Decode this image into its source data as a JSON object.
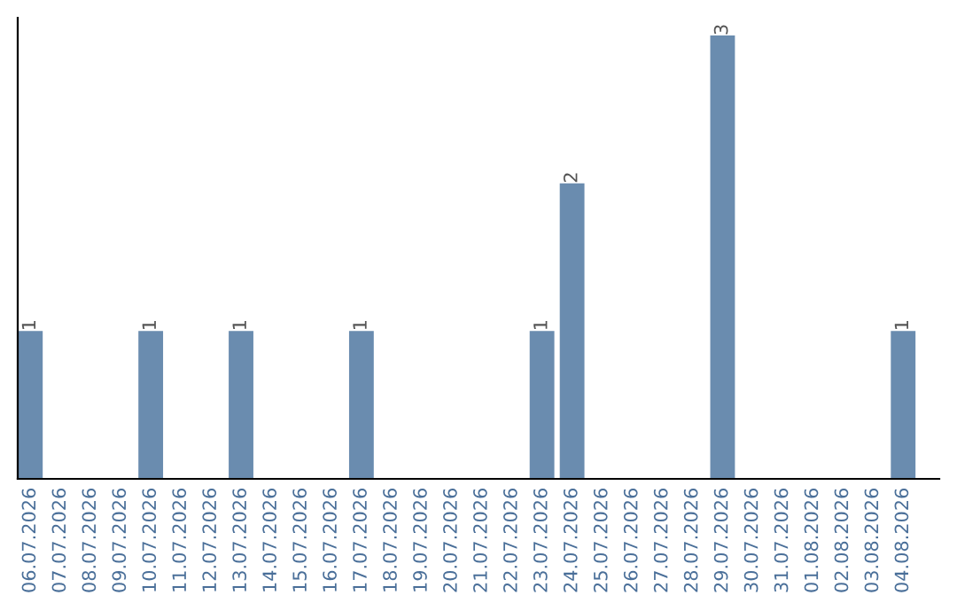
{
  "chart_data": {
    "type": "bar",
    "categories": [
      "06.07.2026",
      "07.07.2026",
      "08.07.2026",
      "09.07.2026",
      "10.07.2026",
      "11.07.2026",
      "12.07.2026",
      "13.07.2026",
      "14.07.2026",
      "15.07.2026",
      "16.07.2026",
      "17.07.2026",
      "18.07.2026",
      "19.07.2026",
      "20.07.2026",
      "21.07.2026",
      "22.07.2026",
      "23.07.2026",
      "24.07.2026",
      "25.07.2026",
      "26.07.2026",
      "27.07.2026",
      "28.07.2026",
      "29.07.2026",
      "30.07.2026",
      "31.07.2026",
      "01.08.2026",
      "02.08.2026",
      "03.08.2026",
      "04.08.2026"
    ],
    "values": [
      1,
      0,
      0,
      0,
      1,
      0,
      0,
      1,
      0,
      0,
      0,
      1,
      0,
      0,
      0,
      0,
      0,
      1,
      2,
      0,
      0,
      0,
      0,
      3,
      0,
      0,
      0,
      0,
      0,
      1
    ],
    "value_labels": [
      "1",
      null,
      null,
      null,
      "1",
      null,
      null,
      "1",
      null,
      null,
      null,
      "1",
      null,
      null,
      null,
      null,
      null,
      "1",
      "2",
      null,
      null,
      null,
      null,
      "3",
      null,
      null,
      null,
      null,
      null,
      "1"
    ],
    "color": "#6a8caf",
    "ylim": [
      0,
      3.12
    ],
    "tick_labels": "x",
    "grid": false,
    "legend": false
  }
}
